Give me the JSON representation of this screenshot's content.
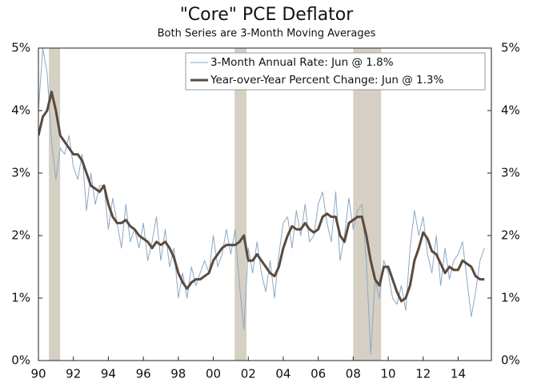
{
  "chart_data": {
    "type": "line",
    "title": "\"Core\" PCE Deflator",
    "subtitle": "Both Series are 3-Month Moving Averages",
    "x": [
      1990,
      1990.25,
      1990.5,
      1990.75,
      1991,
      1991.25,
      1991.5,
      1991.75,
      1992,
      1992.25,
      1992.5,
      1992.75,
      1993,
      1993.25,
      1993.5,
      1993.75,
      1994,
      1994.25,
      1994.5,
      1994.75,
      1995,
      1995.25,
      1995.5,
      1995.75,
      1996,
      1996.25,
      1996.5,
      1996.75,
      1997,
      1997.25,
      1997.5,
      1997.75,
      1998,
      1998.25,
      1998.5,
      1998.75,
      1999,
      1999.25,
      1999.5,
      1999.75,
      2000,
      2000.25,
      2000.5,
      2000.75,
      2001,
      2001.25,
      2001.5,
      2001.75,
      2002,
      2002.25,
      2002.5,
      2002.75,
      2003,
      2003.25,
      2003.5,
      2003.75,
      2004,
      2004.25,
      2004.5,
      2004.75,
      2005,
      2005.25,
      2005.5,
      2005.75,
      2006,
      2006.25,
      2006.5,
      2006.75,
      2007,
      2007.25,
      2007.5,
      2007.75,
      2008,
      2008.25,
      2008.5,
      2008.75,
      2009,
      2009.25,
      2009.5,
      2009.75,
      2010,
      2010.25,
      2010.5,
      2010.75,
      2011,
      2011.25,
      2011.5,
      2011.75,
      2012,
      2012.25,
      2012.5,
      2012.75,
      2013,
      2013.25,
      2013.5,
      2013.75,
      2014,
      2014.25,
      2014.5,
      2014.75,
      2015,
      2015.25,
      2015.5
    ],
    "series": [
      {
        "name": "3-Month Annual Rate: Jun @ 1.8%",
        "color": "#8aa8c6",
        "width": 1,
        "values": [
          4.0,
          5.0,
          4.6,
          3.5,
          2.9,
          3.4,
          3.3,
          3.6,
          3.1,
          2.9,
          3.3,
          2.4,
          3.0,
          2.5,
          2.8,
          2.8,
          2.1,
          2.6,
          2.2,
          1.8,
          2.5,
          1.9,
          2.1,
          1.8,
          2.2,
          1.6,
          1.9,
          2.3,
          1.6,
          2.1,
          1.5,
          1.8,
          1.0,
          1.4,
          1.0,
          1.5,
          1.2,
          1.4,
          1.6,
          1.4,
          2.0,
          1.5,
          1.7,
          2.1,
          1.7,
          2.1,
          1.2,
          0.5,
          1.8,
          1.4,
          1.9,
          1.4,
          1.1,
          1.6,
          1.0,
          1.7,
          2.2,
          2.3,
          1.8,
          2.4,
          2.0,
          2.5,
          1.9,
          2.0,
          2.5,
          2.7,
          2.2,
          1.9,
          2.7,
          1.6,
          2.0,
          2.6,
          2.1,
          2.4,
          2.5,
          1.6,
          0.1,
          1.3,
          1.0,
          1.6,
          1.4,
          1.0,
          0.9,
          1.2,
          0.8,
          1.8,
          2.4,
          2.0,
          2.3,
          1.7,
          1.4,
          2.0,
          1.2,
          1.8,
          1.3,
          1.6,
          1.7,
          1.9,
          1.3,
          0.7,
          1.1,
          1.6,
          1.8
        ]
      },
      {
        "name": "Year-over-Year Percent Change: Jun @ 1.3%",
        "color": "#5a4a3e",
        "width": 3,
        "values": [
          3.6,
          3.9,
          4.0,
          4.3,
          4.0,
          3.6,
          3.5,
          3.4,
          3.3,
          3.3,
          3.2,
          3.0,
          2.8,
          2.75,
          2.7,
          2.8,
          2.5,
          2.3,
          2.2,
          2.2,
          2.25,
          2.15,
          2.1,
          2.0,
          1.95,
          1.9,
          1.8,
          1.9,
          1.85,
          1.9,
          1.8,
          1.65,
          1.4,
          1.25,
          1.15,
          1.25,
          1.3,
          1.3,
          1.35,
          1.4,
          1.6,
          1.7,
          1.8,
          1.85,
          1.85,
          1.85,
          1.9,
          2.0,
          1.6,
          1.6,
          1.7,
          1.6,
          1.5,
          1.4,
          1.35,
          1.5,
          1.8,
          2.0,
          2.15,
          2.1,
          2.1,
          2.2,
          2.1,
          2.05,
          2.1,
          2.3,
          2.35,
          2.3,
          2.3,
          2.0,
          1.9,
          2.2,
          2.25,
          2.3,
          2.3,
          2.0,
          1.6,
          1.3,
          1.2,
          1.5,
          1.5,
          1.3,
          1.1,
          0.95,
          1.0,
          1.2,
          1.6,
          1.8,
          2.05,
          1.95,
          1.75,
          1.7,
          1.55,
          1.4,
          1.5,
          1.45,
          1.45,
          1.6,
          1.55,
          1.5,
          1.35,
          1.3,
          1.3
        ]
      }
    ],
    "recessions": [
      [
        1990.6,
        1991.24
      ],
      [
        2001.22,
        2001.9
      ],
      [
        2008.0,
        2009.6
      ]
    ],
    "recession_color": "#d6d0c4",
    "xlim": [
      1990,
      2015.9
    ],
    "xticks": [
      {
        "value": 1990,
        "label": "90"
      },
      {
        "value": 1992,
        "label": "92"
      },
      {
        "value": 1994,
        "label": "94"
      },
      {
        "value": 1996,
        "label": "96"
      },
      {
        "value": 1998,
        "label": "98"
      },
      {
        "value": 2000,
        "label": "00"
      },
      {
        "value": 2002,
        "label": "02"
      },
      {
        "value": 2004,
        "label": "04"
      },
      {
        "value": 2006,
        "label": "06"
      },
      {
        "value": 2008,
        "label": "08"
      },
      {
        "value": 2010,
        "label": "10"
      },
      {
        "value": 2012,
        "label": "12"
      },
      {
        "value": 2014,
        "label": "14"
      }
    ],
    "ylim": [
      0,
      5
    ],
    "yticks": [
      {
        "value": 0,
        "label": "0%"
      },
      {
        "value": 1,
        "label": "1%"
      },
      {
        "value": 2,
        "label": "2%"
      },
      {
        "value": 3,
        "label": "3%"
      },
      {
        "value": 4,
        "label": "4%"
      },
      {
        "value": 5,
        "label": "5%"
      }
    ],
    "y2lim": [
      0,
      5
    ],
    "y2ticks": [
      {
        "value": 0,
        "label": "0%"
      },
      {
        "value": 1,
        "label": "1%"
      },
      {
        "value": 2,
        "label": "2%"
      },
      {
        "value": 3,
        "label": "3%"
      },
      {
        "value": 4,
        "label": "4%"
      },
      {
        "value": 5,
        "label": "5%"
      }
    ],
    "grid": false,
    "legend": "upper-right"
  }
}
